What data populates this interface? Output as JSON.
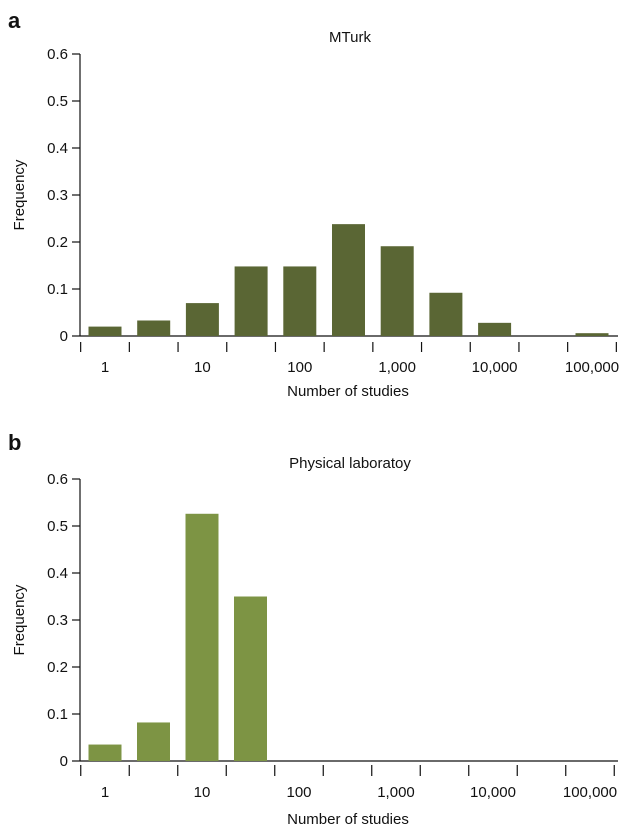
{
  "figure": {
    "panel_letters": [
      "a",
      "b"
    ]
  },
  "chart_data": [
    {
      "type": "bar",
      "title": "MTurk",
      "xlabel": "Number of studies",
      "ylabel": "Frequency",
      "x_scale": "log10",
      "x_tick_labels": [
        "1",
        "10",
        "100",
        "1,000",
        "10,000",
        "100,000"
      ],
      "y_tick_labels": [
        "0",
        "0.1",
        "0.2",
        "0.3",
        "0.4",
        "0.5",
        "0.6"
      ],
      "ylim": [
        0,
        0.6
      ],
      "grid": false,
      "bar_color": "#5a6634",
      "x": [
        1,
        3.16,
        10,
        31.6,
        100,
        316,
        1000,
        3162,
        10000,
        31623,
        100000
      ],
      "values": [
        0.02,
        0.033,
        0.07,
        0.148,
        0.148,
        0.238,
        0.191,
        0.092,
        0.028,
        0,
        0.006
      ]
    },
    {
      "type": "bar",
      "title": "Physical laboratoy",
      "xlabel": "Number of studies",
      "ylabel": "Frequency",
      "x_scale": "log10",
      "x_tick_labels": [
        "1",
        "10",
        "100",
        "1,000",
        "10,000",
        "100,000"
      ],
      "y_tick_labels": [
        "0",
        "0.1",
        "0.2",
        "0.3",
        "0.4",
        "0.5",
        "0.6"
      ],
      "ylim": [
        0,
        0.6
      ],
      "grid": false,
      "bar_color": "#7d9444",
      "x": [
        1,
        3.16,
        10,
        31.6,
        100,
        316,
        1000,
        3162,
        10000,
        31623,
        100000
      ],
      "values": [
        0.035,
        0.082,
        0.526,
        0.35,
        0,
        0,
        0,
        0,
        0,
        0,
        0
      ]
    }
  ]
}
